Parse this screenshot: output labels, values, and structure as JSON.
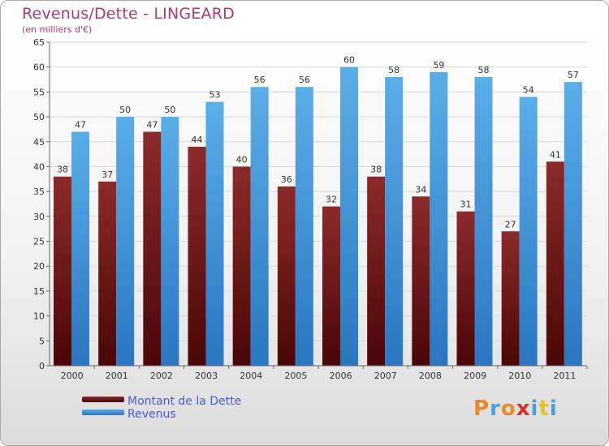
{
  "title": "Revenus/Dette - LINGEARD",
  "subtitle": "(en milliers d'€)",
  "chart_data": {
    "type": "bar",
    "categories": [
      "2000",
      "2001",
      "2002",
      "2003",
      "2004",
      "2005",
      "2006",
      "2007",
      "2008",
      "2009",
      "2010",
      "2011"
    ],
    "series": [
      {
        "name": "Montant de la Dette",
        "color": "#7a1a1a",
        "values": [
          38,
          37,
          47,
          44,
          40,
          36,
          32,
          38,
          34,
          31,
          27,
          41
        ]
      },
      {
        "name": "Revenus",
        "color": "#4a9fe0",
        "values": [
          47,
          50,
          50,
          53,
          56,
          56,
          60,
          58,
          59,
          58,
          54,
          57
        ]
      }
    ],
    "yticks": [
      0,
      5,
      10,
      15,
      20,
      25,
      30,
      35,
      40,
      45,
      50,
      55,
      60,
      65
    ],
    "ylim": [
      0,
      65
    ],
    "grid": true,
    "legend_position": "bottom-left"
  },
  "logo": {
    "letters": [
      "P",
      "r",
      "o",
      "x",
      "i",
      "t",
      "i"
    ],
    "colors": [
      "#e8892a",
      "#4a9fe0",
      "#e8892a",
      "#d9322a",
      "#4a9fe0",
      "#e8c22a",
      "#4a9fe0"
    ]
  }
}
